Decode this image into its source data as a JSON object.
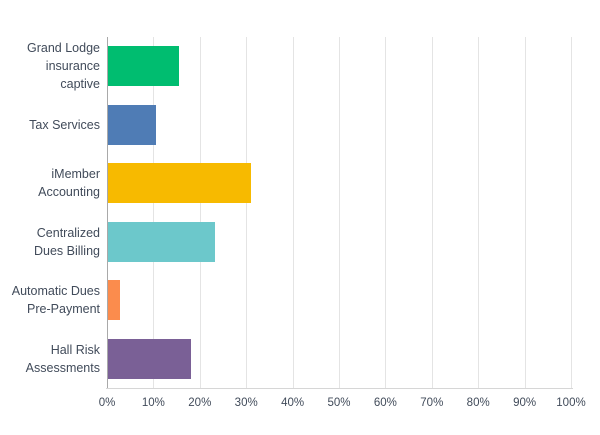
{
  "chart_data": {
    "type": "bar",
    "orientation": "horizontal",
    "title": "",
    "xlabel": "",
    "ylabel": "",
    "categories": [
      "Grand Lodge insurance captive",
      "Tax Services",
      "iMember Accounting",
      "Centralized Dues Billing",
      "Automatic Dues Pre-Payment",
      "Hall Risk Assessments"
    ],
    "values": [
      15.38,
      10.26,
      30.77,
      23.08,
      2.56,
      17.95
    ],
    "value_unit": "%",
    "bar_colors": [
      "#00bd70",
      "#4f7cb5",
      "#f7ba00",
      "#6cc8cb",
      "#fb8c4d",
      "#7a6096"
    ],
    "x_ticks": [
      "0%",
      "10%",
      "20%",
      "30%",
      "40%",
      "50%",
      "60%",
      "70%",
      "80%",
      "90%",
      "100%"
    ],
    "xlim": [
      0,
      100
    ],
    "grid": "vertical-gridlines",
    "legend": "none"
  },
  "colors": {
    "background": "#ffffff",
    "gridline": "#e4e4e4",
    "zero_axis_line": "#a9a9a9",
    "baseline": "#d6d6d6",
    "text": "#414b5a"
  }
}
